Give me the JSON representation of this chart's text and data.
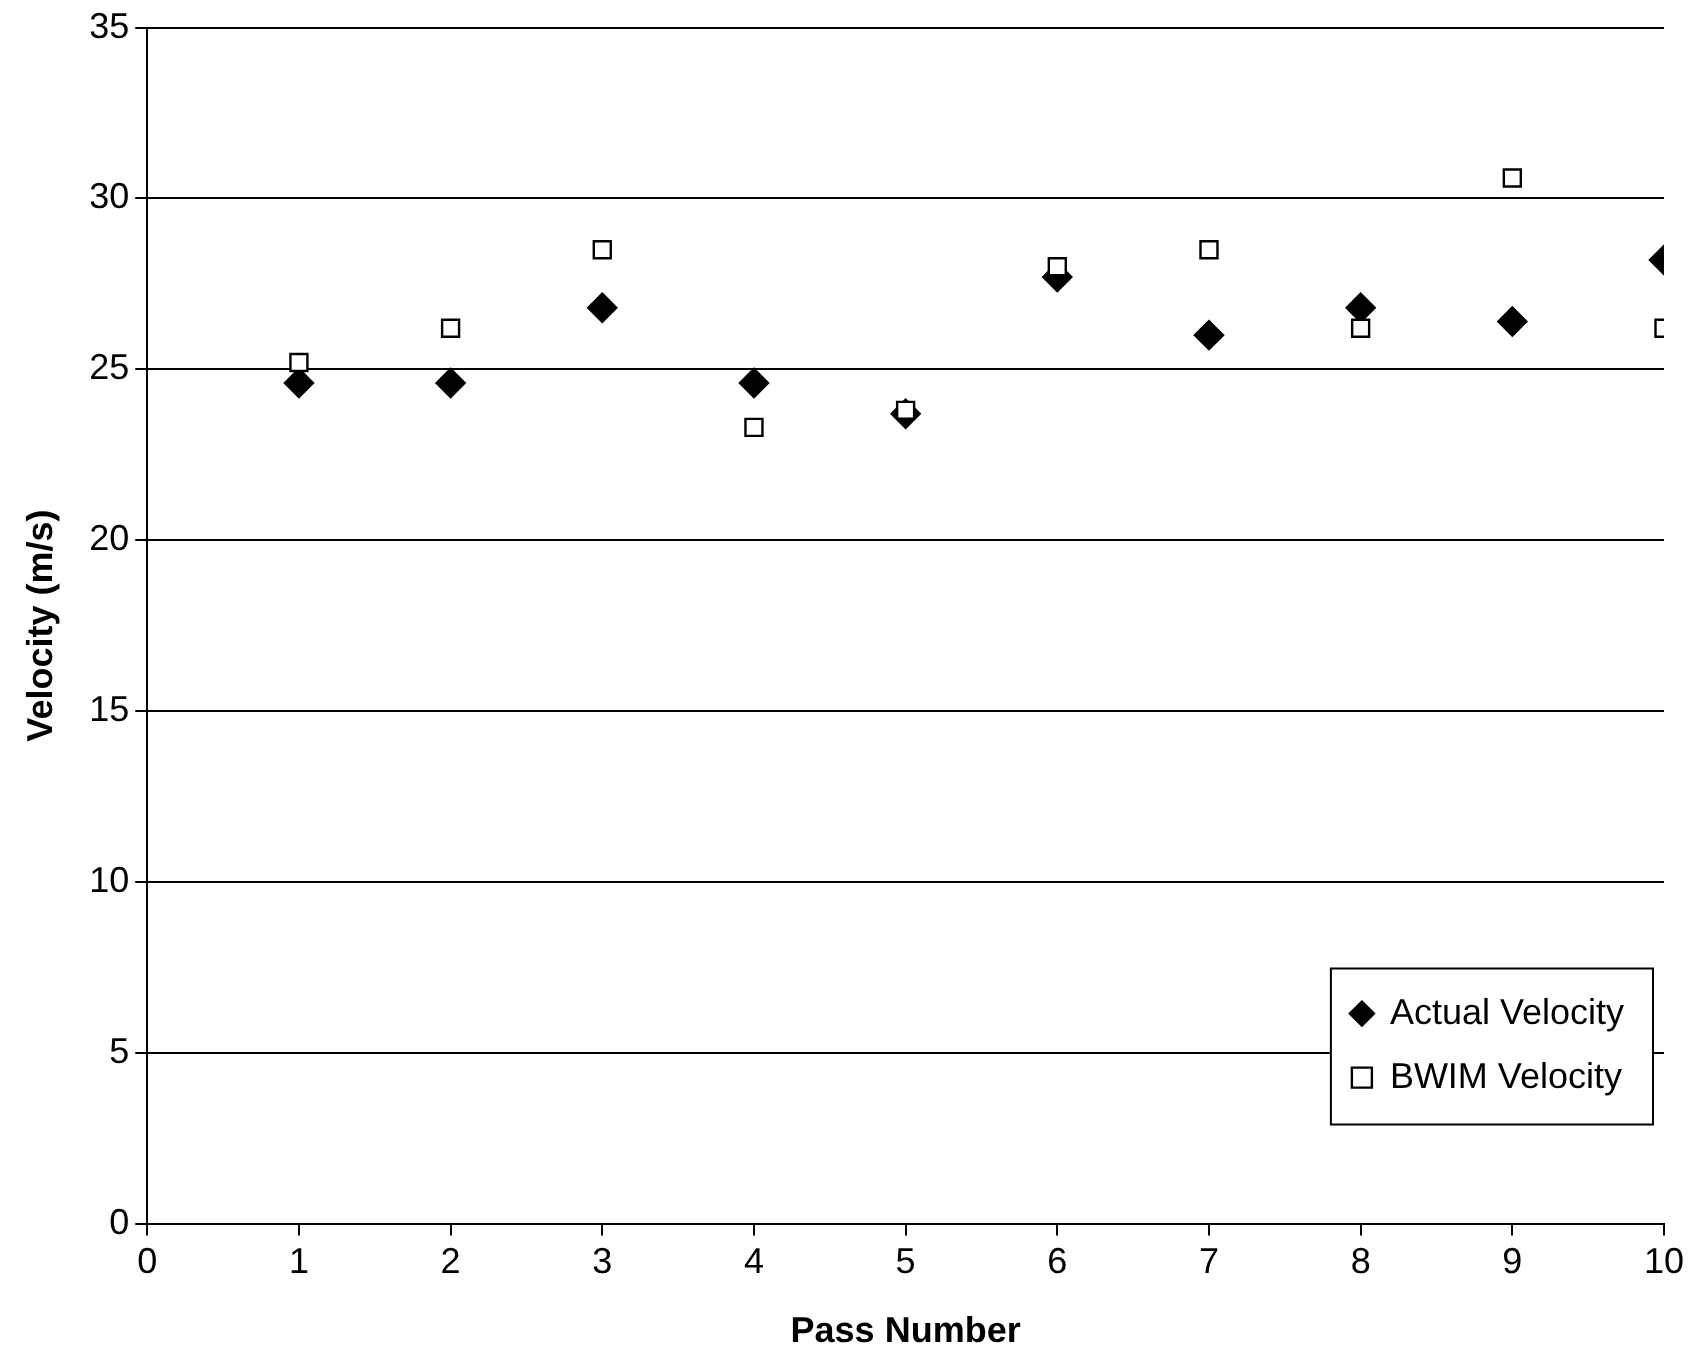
{
  "chart_data": {
    "type": "scatter",
    "xlabel": "Pass Number",
    "ylabel": "Velocity (m/s)",
    "x": [
      1,
      2,
      3,
      4,
      5,
      6,
      7,
      8,
      9,
      10
    ],
    "series": [
      {
        "name": "Actual Velocity",
        "color": "#000000",
        "marker": "diamond",
        "values": [
          24.6,
          24.6,
          26.8,
          24.6,
          23.7,
          27.7,
          26.0,
          26.8,
          26.4,
          28.2
        ]
      },
      {
        "name": "BWIM Velocity",
        "color": "#000000",
        "marker": "square",
        "values": [
          25.2,
          26.2,
          28.5,
          23.3,
          23.8,
          28.0,
          28.5,
          26.2,
          30.6,
          26.2
        ]
      }
    ],
    "xlim": [
      0,
      10
    ],
    "xticks": [
      0,
      1,
      2,
      3,
      4,
      5,
      6,
      7,
      8,
      9,
      10
    ],
    "ylim": [
      0,
      35
    ],
    "yticks": [
      0,
      5,
      10,
      15,
      20,
      25,
      30,
      35
    ],
    "grid": "y",
    "legend": "bottom right"
  }
}
